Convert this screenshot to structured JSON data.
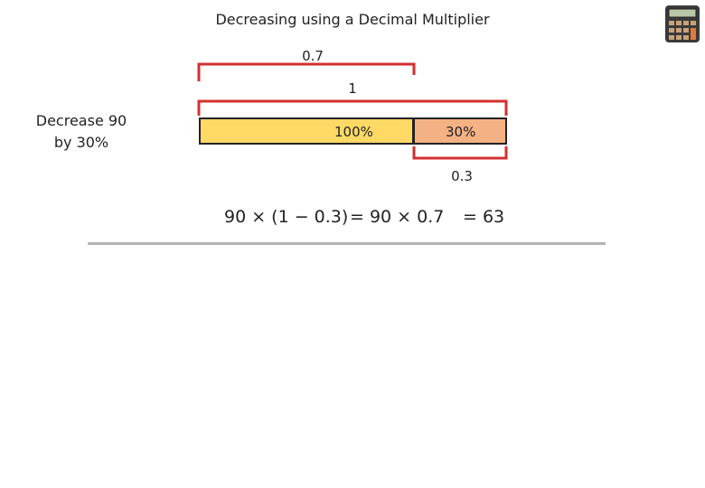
{
  "title": "Decreasing using a Decimal Multiplier",
  "prompt": {
    "line1": "Decrease 90",
    "line2": "by 30%"
  },
  "brackets": {
    "top_label": "0.7",
    "whole_label": "1",
    "bottom_label": "0.3"
  },
  "bar": {
    "main_label": "100%",
    "part_label": "30%",
    "main_color": "#ffd966",
    "part_color": "#f4b183"
  },
  "equation": {
    "left": "90 × (1 − 0.3)",
    "middle": "= 90 × 0.7",
    "result": "= 63"
  },
  "colors": {
    "bracket": "#d32f2f",
    "divider": "#b3b3b3"
  },
  "icon": "calculator-icon"
}
